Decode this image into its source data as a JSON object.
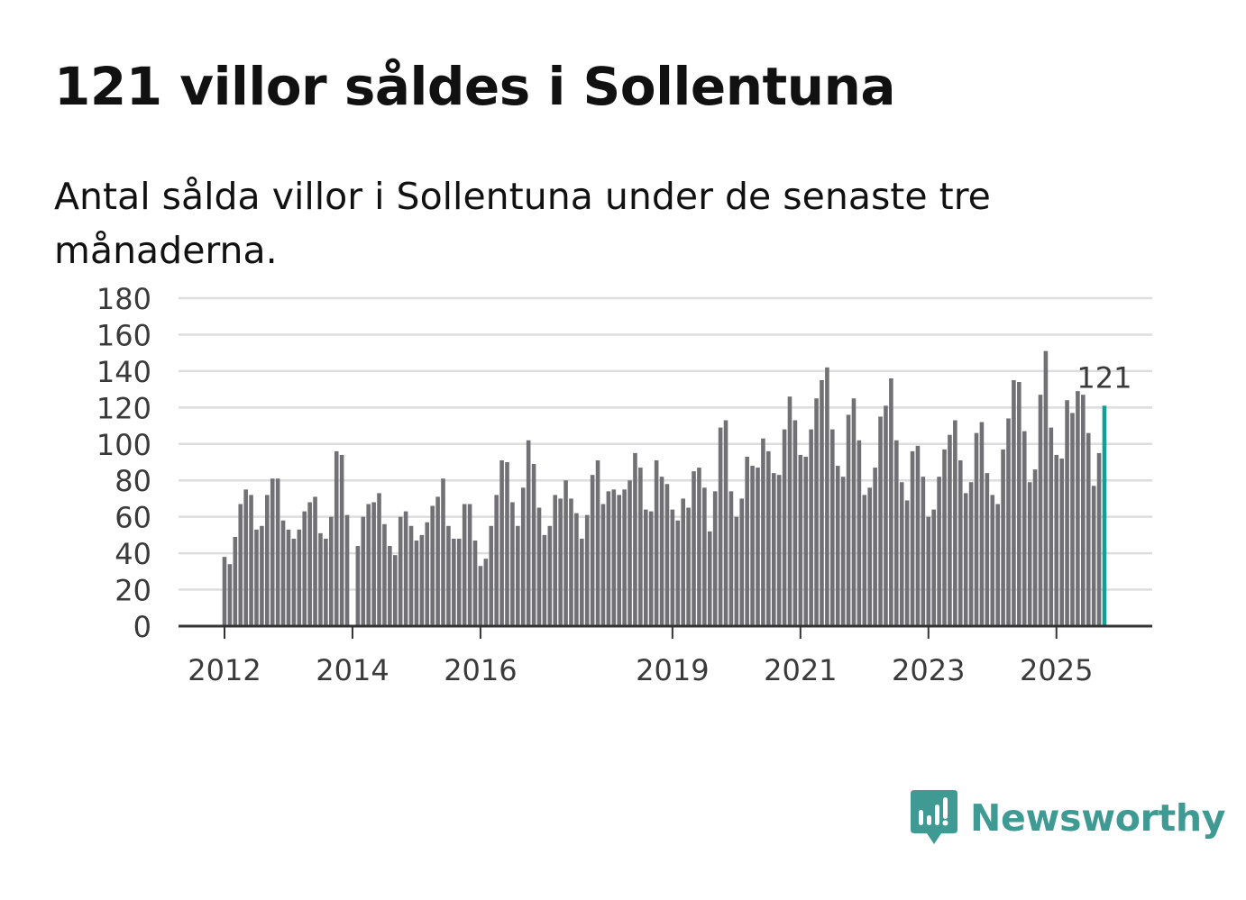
{
  "title": "121 villor såldes i Sollentuna",
  "subtitle": "Antal sålda villor i Sollentuna under de senaste tre månaderna.",
  "brand": {
    "name": "Newsworthy",
    "icon": "newsworthy-logo-icon",
    "color": "#3e9a92"
  },
  "colors": {
    "bar": "#717075",
    "highlight": "#159e94",
    "grid": "#dddddd",
    "axis": "#333333"
  },
  "chart_data": {
    "type": "bar",
    "title": "121 villor såldes i Sollentuna",
    "xlabel": "",
    "ylabel": "",
    "ylim": [
      0,
      180
    ],
    "yticks": [
      0,
      20,
      40,
      60,
      80,
      100,
      120,
      140,
      160,
      180
    ],
    "xtick_labels": [
      {
        "label": "2012",
        "index": 0
      },
      {
        "label": "2014",
        "index": 24
      },
      {
        "label": "2016",
        "index": 48
      },
      {
        "label": "2019",
        "index": 84
      },
      {
        "label": "2021",
        "index": 108
      },
      {
        "label": "2023",
        "index": 132
      },
      {
        "label": "2025",
        "index": 156
      }
    ],
    "highlight_label": "121",
    "series": [
      {
        "name": "Antal sålda villor",
        "values": [
          38,
          34,
          49,
          67,
          75,
          72,
          53,
          55,
          72,
          81,
          81,
          58,
          53,
          48,
          53,
          63,
          68,
          71,
          51,
          48,
          60,
          96,
          94,
          61,
          0,
          44,
          60,
          67,
          68,
          73,
          56,
          44,
          39,
          60,
          63,
          55,
          47,
          50,
          57,
          66,
          71,
          81,
          55,
          48,
          48,
          67,
          67,
          47,
          33,
          37,
          55,
          72,
          91,
          90,
          68,
          55,
          76,
          102,
          89,
          65,
          50,
          55,
          72,
          70,
          80,
          70,
          62,
          48,
          61,
          83,
          91,
          67,
          74,
          75,
          72,
          75,
          80,
          95,
          87,
          64,
          63,
          91,
          82,
          78,
          64,
          58,
          70,
          65,
          85,
          87,
          76,
          52,
          74,
          109,
          113,
          74,
          60,
          70,
          93,
          88,
          87,
          103,
          96,
          84,
          83,
          108,
          126,
          113,
          94,
          93,
          108,
          125,
          135,
          142,
          108,
          88,
          82,
          116,
          125,
          102,
          72,
          76,
          87,
          115,
          121,
          136,
          102,
          79,
          69,
          96,
          99,
          82,
          60,
          64,
          82,
          97,
          105,
          113,
          91,
          73,
          79,
          106,
          112,
          84,
          72,
          67,
          97,
          114,
          135,
          134,
          107,
          79,
          86,
          127,
          151,
          109,
          94,
          92,
          124,
          117,
          129,
          127,
          106,
          77,
          95,
          121
        ]
      }
    ]
  }
}
